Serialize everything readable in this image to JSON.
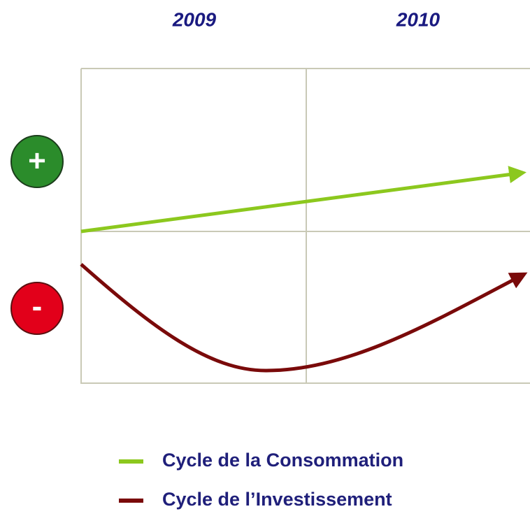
{
  "header": {
    "columns": [
      "2009",
      "2010"
    ]
  },
  "signs": [
    "+",
    "-"
  ],
  "legend": [
    {
      "label": "Cycle de la Consommation",
      "color": "#8cc81e"
    },
    {
      "label": "Cycle de l’Investissement",
      "color": "#7a0a0a"
    }
  ]
}
